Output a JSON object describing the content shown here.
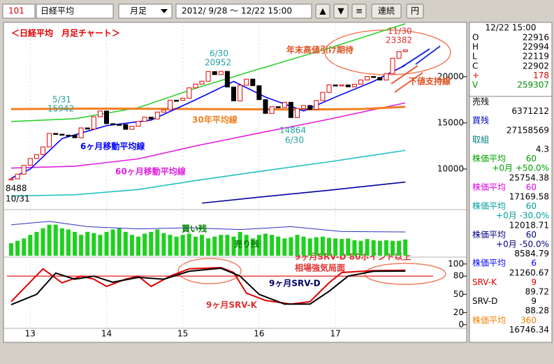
{
  "toolbar": {
    "code": "101",
    "name": "日経平均",
    "period": "月足",
    "range": "2012/ 9/28 〜 12/22 15:00",
    "buttons": [
      "▲",
      "▼",
      "≡",
      "連続",
      "円"
    ]
  },
  "info": {
    "time": "12/22 15:00",
    "ohlc": [
      {
        "label": "O",
        "value": "22916",
        "color": "#000000"
      },
      {
        "label": "H",
        "value": "22994",
        "color": "#000000"
      },
      {
        "label": "L",
        "value": "22119",
        "color": "#000000"
      },
      {
        "label": "C",
        "value": "22902",
        "color": "#000000"
      },
      {
        "label": "+",
        "value": "178",
        "color": "#e00000"
      },
      {
        "label": "V",
        "value": "259307",
        "color": "#009000"
      }
    ],
    "items": [
      {
        "label": "売残",
        "value": "6371212",
        "color": "#000000"
      },
      {
        "label": "買残",
        "value": "27158569",
        "color": "#0000c0"
      },
      {
        "label": "取組",
        "value": "4.3",
        "color": "#008080"
      },
      {
        "label": "株価平均",
        "param": "60",
        "sub": "+0月 +50.0%",
        "value": "25754.38",
        "color": "#00a000"
      },
      {
        "label": "株価平均",
        "param": "60",
        "value": "17169.58",
        "color": "#e000e0"
      },
      {
        "label": "株価平均",
        "param": "60",
        "sub": "+0月 -30.0%",
        "value": "12018.71",
        "color": "#00a0a0"
      },
      {
        "label": "株価平均",
        "param": "60",
        "sub": "+0月 -50.0%",
        "value": "8584.79",
        "color": "#000080"
      },
      {
        "label": "株価平均",
        "param": "6",
        "value": "21260.67",
        "color": "#0000ff"
      },
      {
        "label": "SRV-K",
        "param": "9",
        "value": "89.72",
        "color": "#e00000"
      },
      {
        "label": "SRV-D",
        "param": "9",
        "value": "88.28",
        "color": "#000000"
      },
      {
        "label": "株価平均",
        "param": "360",
        "value": "16746.34",
        "color": "#f08000"
      }
    ]
  },
  "chart_data": {
    "type": "candlestick",
    "title": "＜日経平均　月足チャート＞",
    "categories": [
      null,
      null,
      null,
      "13",
      null,
      null,
      null,
      null,
      null,
      null,
      null,
      null,
      null,
      null,
      null,
      "14",
      null,
      null,
      null,
      null,
      null,
      null,
      null,
      null,
      null,
      null,
      null,
      "15",
      null,
      null,
      null,
      null,
      null,
      null,
      null,
      null,
      null,
      null,
      null,
      "16",
      null,
      null,
      null,
      null,
      null,
      null,
      null,
      null,
      null,
      null,
      null,
      "17",
      null,
      null,
      null,
      null,
      null,
      null,
      null,
      null,
      null,
      null,
      null
    ],
    "close": [
      8928,
      9446,
      10395,
      11139,
      11559,
      12398,
      13860,
      13775,
      13677,
      13668,
      13389,
      14456,
      14328,
      15662,
      16291,
      14915,
      14841,
      14828,
      14304,
      14632,
      15162,
      15621,
      15425,
      16174,
      16414,
      17460,
      17451,
      17674,
      18798,
      19207,
      19520,
      20563,
      20236,
      20585,
      18890,
      17388,
      19083,
      19747,
      19034,
      17518,
      16027,
      16759,
      16666,
      17235,
      15576,
      16569,
      16887,
      16450,
      17425,
      18308,
      19114,
      19041,
      19119,
      18909,
      19197,
      19651,
      20033,
      19925,
      19646,
      20356,
      22012,
      22725,
      22902
    ],
    "up_color": "#e00000",
    "down_color": "#000000",
    "ylim": [
      5600,
      25900
    ],
    "yticks": [
      10000,
      15000,
      20000
    ],
    "lines": [
      {
        "color": "#30d030",
        "x": [
          0,
          10,
          20,
          29,
          39,
          50,
          62
        ],
        "values": [
          15150,
          15450,
          16650,
          18750,
          20850,
          23100,
          25754
        ]
      },
      {
        "name": "60ヶ月移動平均線",
        "color": "#e020e0",
        "x": [
          0,
          10,
          20,
          29,
          39,
          50,
          62
        ],
        "values": [
          10100,
          10300,
          11100,
          12500,
          13900,
          15400,
          17169
        ]
      },
      {
        "color": "#20c0c0",
        "x": [
          0,
          10,
          20,
          29,
          39,
          50,
          62
        ],
        "values": [
          7070,
          7210,
          7770,
          8750,
          9730,
          10780,
          12019
        ]
      },
      {
        "color": "#0000a0",
        "x": [
          30,
          39,
          50,
          62
        ],
        "values": [
          6300,
          6950,
          7700,
          8585
        ]
      },
      {
        "name": "30年平均線",
        "color": "#f08020",
        "x": [
          0,
          15,
          30,
          45,
          55,
          62
        ],
        "values": [
          16500,
          16550,
          16500,
          16450,
          16500,
          16746
        ]
      },
      {
        "name": "6ヶ月移動平均線",
        "color": "#0000ff",
        "x": [
          0,
          3,
          8,
          15,
          22,
          29,
          35,
          40,
          46,
          51,
          57,
          62
        ],
        "values": [
          9000,
          10000,
          13300,
          14700,
          15300,
          17500,
          19500,
          17800,
          16300,
          17800,
          19500,
          21261
        ]
      }
    ],
    "price_labels": [
      {
        "date": "10/31",
        "value": 8488,
        "color": "#000000"
      },
      {
        "date": "5/31",
        "value": 15942,
        "color": "#20a0a0"
      },
      {
        "date": "6/30",
        "value": 20952,
        "color": "#20a0a0"
      },
      {
        "date": "6/30",
        "value": 14864,
        "color": "#20a0a0"
      },
      {
        "date": "11/30",
        "value": 23382,
        "color": "#e03030"
      }
    ],
    "annotations": [
      {
        "text": "年末高値引け期待",
        "color": "#e05020"
      },
      {
        "text": "下値支持線",
        "color": "#e05020"
      },
      {
        "text": "9ヶ月SRV-D  80ポイント以上",
        "color": "#e03030"
      },
      {
        "text": "相場強気局面",
        "color": "#e03030"
      },
      {
        "text": "9ヶ月SRV-D",
        "color": "#000060"
      },
      {
        "text": "9ヶ月SRV-K",
        "color": "#e03030"
      }
    ],
    "margin": {
      "buy_label": "買い残",
      "sell_label": "売り残",
      "buy": {
        "color": "#20d020",
        "ylim": [
          0,
          75000000
        ],
        "values": [
          21000000,
          25000000,
          29000000,
          35000000,
          40000000,
          46000000,
          52000000,
          52000000,
          46000000,
          44000000,
          40000000,
          35000000,
          40000000,
          38000000,
          35000000,
          40000000,
          44000000,
          46000000,
          40000000,
          35000000,
          32000000,
          37000000,
          40000000,
          44000000,
          38000000,
          35000000,
          32000000,
          35000000,
          37000000,
          32000000,
          35000000,
          29000000,
          32000000,
          35000000,
          35000000,
          32000000,
          40000000,
          35000000,
          29000000,
          35000000,
          37000000,
          35000000,
          32000000,
          29000000,
          31000000,
          35000000,
          32000000,
          29000000,
          31000000,
          32000000,
          30000000,
          29000000,
          28000000,
          29000000,
          26000000,
          25000000,
          28000000,
          26000000,
          25000000,
          26000000,
          25000000,
          25000000,
          27158569
        ]
      },
      "sell": {
        "color": "#3030c0",
        "ylim": [
          0,
          12000000
        ],
        "x": [
          0,
          6,
          12,
          20,
          28,
          36,
          44,
          52,
          62
        ],
        "values": [
          8300000,
          9200000,
          7800000,
          7200000,
          7500000,
          7000000,
          7800000,
          6500000,
          6371212
        ]
      }
    },
    "srv": {
      "ylim": [
        -6,
        109
      ],
      "yticks": [
        0,
        20,
        50,
        80,
        100
      ],
      "signal": {
        "value": 80,
        "color": "#f04040"
      },
      "series": [
        {
          "color": "#e00000",
          "x": [
            0,
            5,
            8,
            11,
            13,
            15,
            18,
            20,
            22,
            25,
            28,
            33,
            35,
            37,
            40,
            44,
            47,
            50,
            52,
            57,
            62
          ],
          "values": [
            38,
            92,
            69,
            80,
            75,
            63,
            75,
            80,
            63,
            80,
            92,
            94,
            86,
            52,
            40,
            34,
            38,
            69,
            86,
            89,
            89.72
          ]
        },
        {
          "color": "#000000",
          "x": [
            0,
            4,
            7,
            10,
            13,
            16,
            20,
            24,
            28,
            33,
            36,
            39,
            43,
            47,
            50,
            53,
            57,
            62
          ],
          "values": [
            33,
            50,
            85,
            75,
            80,
            70,
            78,
            75,
            88,
            93,
            80,
            50,
            34,
            34,
            55,
            80,
            88,
            88.28
          ]
        }
      ]
    }
  }
}
